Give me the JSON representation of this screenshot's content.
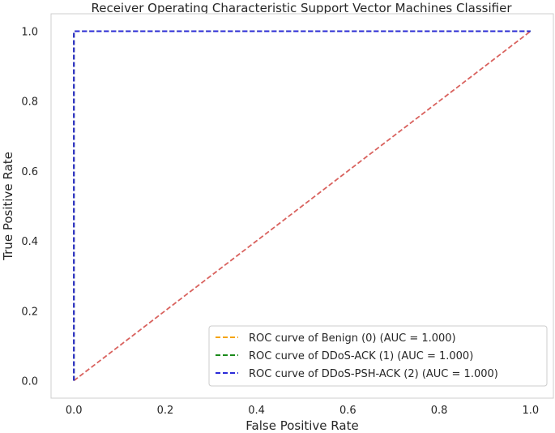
{
  "chart_data": {
    "type": "line",
    "title": "Receiver Operating Characteristic Support Vector Machines Classifier",
    "xlabel": "False Positive Rate",
    "ylabel": "True Positive Rate",
    "xlim": [
      -0.05,
      1.05
    ],
    "ylim": [
      -0.05,
      1.05
    ],
    "xticks": [
      "0.0",
      "0.2",
      "0.4",
      "0.6",
      "0.8",
      "1.0"
    ],
    "yticks": [
      "0.0",
      "0.2",
      "0.4",
      "0.6",
      "0.8",
      "1.0"
    ],
    "grid": false,
    "legend_position": "lower-right",
    "series": [
      {
        "name": "ROC curve of Benign (0) (AUC = 1.000)",
        "color": "#f5a300",
        "style": "dashed",
        "x": [
          0,
          0,
          1
        ],
        "y": [
          0,
          1,
          1
        ]
      },
      {
        "name": "ROC curve of DDoS-ACK (1) (AUC = 1.000)",
        "color": "#1a8a1a",
        "style": "dashed",
        "x": [
          0,
          0,
          1
        ],
        "y": [
          0,
          1,
          1
        ]
      },
      {
        "name": "ROC curve of DDoS-PSH-ACK (2) (AUC = 1.000)",
        "color": "#2a2ad8",
        "style": "dashed",
        "x": [
          0,
          0,
          1
        ],
        "y": [
          0,
          1,
          1
        ]
      }
    ],
    "reference_line": {
      "color": "#d9625e",
      "style": "dashed",
      "x": [
        0,
        1
      ],
      "y": [
        0,
        1
      ]
    }
  }
}
